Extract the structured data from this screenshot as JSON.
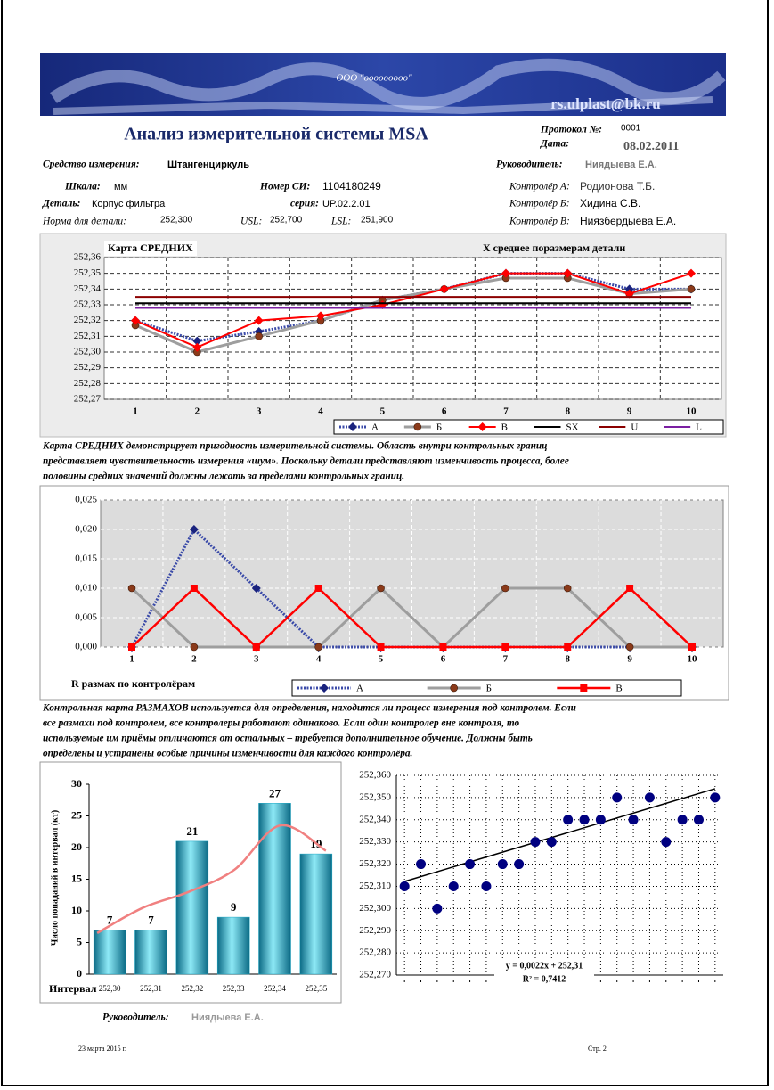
{
  "header": {
    "company": "ООО \"ооооооооо\"",
    "email": "rs.ulplast@bk.ru",
    "title": "Анализ измерительной системы MSA",
    "protocol_label": "Протокол №:",
    "protocol": "0001",
    "date_label": "Дата:",
    "date": "08.02.2011"
  },
  "info": {
    "instrument_label": "Средство измерения:",
    "instrument": "Штангенциркуль",
    "head_label": "Руководитель:",
    "head": "Ниядыева Е.А.",
    "scale_label": "Шкала:",
    "scale": "мм",
    "number_label": "Номер СИ:",
    "number": "1104180249",
    "ctrl_a_label": "Контролёр А:",
    "ctrl_a": "Родионова Т.Б.",
    "part_label": "Деталь:",
    "part": "Корпус фильтра",
    "series_label": "серия:",
    "series": "UP.02.2.01",
    "ctrl_b_label": "Контролёр Б:",
    "ctrl_b": "Хидина С.В.",
    "norm_label": "Норма для детали:",
    "norm": "252,300",
    "usl_label": "USL:",
    "usl": "252,700",
    "lsl_label": "LSL:",
    "lsl": "251,900",
    "ctrl_c_label": "Контролёр В:",
    "ctrl_c": "Ниязбердыева Е.А."
  },
  "captions": [
    [
      "Карта СРЕДНИХ демонстрирует пригодность измерительной системы. Область внутри контрольных границ",
      "представляет чувствительность измерения «шум». Поскольку детали представляют изменчивость процесса, более",
      "половины средних значений должны лежать за пределами контрольных границ."
    ],
    [
      "Контрольная карта РАЗМАХОВ используется для определения, находится ли процесс измерения под контролем. Если",
      "все размахи под контролем, все контролеры работают одинаково. Если один контролер вне контроля, то",
      "используемые им приёмы отличаются от остальных – требуется дополнительное обучение. Должны быть",
      "определены и устранены особые причины изменчивости для каждого контролёра."
    ]
  ],
  "chart_data": [
    {
      "type": "line",
      "title": "Карта СРЕДНИХ",
      "subtitle": "X среднее поразмерам детали",
      "categories": [
        1,
        2,
        3,
        4,
        5,
        6,
        7,
        8,
        9,
        10
      ],
      "ylim": [
        252.27,
        252.36
      ],
      "yticks": [
        {
          "value": 252.27,
          "label": "252,27"
        },
        {
          "value": 252.28,
          "label": "252,28"
        },
        {
          "value": 252.29,
          "label": "252,29"
        },
        {
          "value": 252.3,
          "label": "252,30"
        },
        {
          "value": 252.31,
          "label": "252,31"
        },
        {
          "value": 252.32,
          "label": "252,32"
        },
        {
          "value": 252.33,
          "label": "252,33"
        },
        {
          "value": 252.34,
          "label": "252,34"
        },
        {
          "value": 252.35,
          "label": "252,35"
        },
        {
          "value": 252.36,
          "label": "252,36"
        }
      ],
      "grid": true,
      "series": [
        {
          "name": "А",
          "color": "#3a4aa8",
          "width": 3,
          "dash": "2 1.5",
          "marker": "diamond",
          "marker_color": "#1a237e",
          "values": [
            252.32,
            252.307,
            252.313,
            252.32,
            252.333,
            252.34,
            252.35,
            252.35,
            252.34,
            252.34
          ]
        },
        {
          "name": "Б",
          "color": "#9e9e9e",
          "width": 3,
          "marker": "circle",
          "marker_color": "#8b3a1a",
          "values": [
            252.317,
            252.3,
            252.31,
            252.32,
            252.333,
            252.34,
            252.347,
            252.347,
            252.337,
            252.34
          ]
        },
        {
          "name": "В",
          "color": "#ff0000",
          "width": 2,
          "marker": "diamond",
          "marker_color": "#ff0000",
          "values": [
            252.32,
            252.303,
            252.32,
            252.323,
            252.33,
            252.34,
            252.35,
            252.35,
            252.337,
            252.35
          ]
        },
        {
          "name": "SX",
          "color": "#000000",
          "width": 2,
          "marker": "none",
          "values": [
            252.331,
            252.331,
            252.331,
            252.331,
            252.331,
            252.331,
            252.331,
            252.331,
            252.331,
            252.331
          ]
        },
        {
          "name": "U",
          "color": "#8b0000",
          "width": 2,
          "marker": "none",
          "values": [
            252.335,
            252.335,
            252.335,
            252.335,
            252.335,
            252.335,
            252.335,
            252.335,
            252.335,
            252.335
          ]
        },
        {
          "name": "L",
          "color": "#7b1fa2",
          "width": 2,
          "marker": "none",
          "values": [
            252.328,
            252.328,
            252.328,
            252.328,
            252.328,
            252.328,
            252.328,
            252.328,
            252.328,
            252.328
          ]
        }
      ]
    },
    {
      "type": "line",
      "title": "R размах  по контролёрам",
      "categories": [
        1,
        2,
        3,
        4,
        5,
        6,
        7,
        8,
        9,
        10
      ],
      "ylim": [
        0,
        0.025
      ],
      "yticks": [
        {
          "value": 0,
          "label": "0,000"
        },
        {
          "value": 0.005,
          "label": "0,005"
        },
        {
          "value": 0.01,
          "label": "0,010"
        },
        {
          "value": 0.015,
          "label": "0,015"
        },
        {
          "value": 0.02,
          "label": "0,020"
        },
        {
          "value": 0.025,
          "label": "0,025"
        }
      ],
      "grid": true,
      "series": [
        {
          "name": "А",
          "color": "#3a4aa8",
          "width": 3,
          "dash": "2 1.5",
          "marker": "diamond",
          "marker_color": "#1a237e",
          "values": [
            0,
            0.02,
            0.01,
            0,
            0,
            0,
            0,
            0,
            0,
            0
          ]
        },
        {
          "name": "Б",
          "color": "#9e9e9e",
          "width": 3,
          "marker": "circle",
          "marker_color": "#8b3a1a",
          "values": [
            0.01,
            0,
            0,
            0,
            0.01,
            0,
            0.01,
            0.01,
            0,
            0
          ]
        },
        {
          "name": "В",
          "color": "#ff0000",
          "width": 2.5,
          "marker": "square",
          "marker_color": "#ff0000",
          "values": [
            0,
            0.01,
            0,
            0.01,
            0,
            0,
            0,
            0,
            0.01,
            0
          ]
        }
      ]
    },
    {
      "type": "bar",
      "xlabel": "Интервал",
      "ylabel": "Число попаданий в интервал (кт)",
      "categories": [
        "252,30",
        "252,31",
        "252,32",
        "252,33",
        "252,34",
        "252,35"
      ],
      "values": [
        7,
        7,
        21,
        9,
        27,
        19
      ],
      "color": "#1aa6c4",
      "trend": [
        6.5,
        10.5,
        13,
        16.5,
        23.5,
        19.5
      ],
      "trend_color": "#f08080",
      "ylim": [
        0,
        30
      ],
      "yticks": [
        0,
        5,
        10,
        15,
        20,
        25,
        30
      ]
    },
    {
      "type": "scatter",
      "x": [
        1,
        2,
        3,
        4,
        5,
        6,
        7,
        8,
        9,
        10,
        11,
        12,
        13,
        14,
        15,
        16,
        17,
        18,
        19,
        20
      ],
      "values": [
        252.31,
        252.32,
        252.3,
        252.31,
        252.32,
        252.31,
        252.32,
        252.32,
        252.33,
        252.33,
        252.34,
        252.34,
        252.34,
        252.35,
        252.34,
        252.35,
        252.33,
        252.34,
        252.34,
        252.35
      ],
      "color": "#000080",
      "xlim": [
        0.5,
        20.5
      ],
      "xticks": [
        1,
        2,
        3,
        4,
        5,
        6,
        7,
        8,
        9,
        10,
        11,
        12,
        13,
        14,
        15,
        16,
        17,
        18,
        19,
        20
      ],
      "ylim": [
        252.27,
        252.36
      ],
      "yticks": [
        {
          "value": 252.27,
          "label": "252,270"
        },
        {
          "value": 252.28,
          "label": "252,280"
        },
        {
          "value": 252.29,
          "label": "252,290"
        },
        {
          "value": 252.3,
          "label": "252,300"
        },
        {
          "value": 252.31,
          "label": "252,310"
        },
        {
          "value": 252.32,
          "label": "252,320"
        },
        {
          "value": 252.33,
          "label": "252,330"
        },
        {
          "value": 252.34,
          "label": "252,340"
        },
        {
          "value": 252.35,
          "label": "252,350"
        },
        {
          "value": 252.36,
          "label": "252,360"
        }
      ],
      "grid": true,
      "trendline": {
        "slope": 0.0022,
        "intercept": 252.31
      },
      "equation": "y = 0,0022x + 252,31",
      "r2": "R² = 0,7412"
    }
  ],
  "footer": {
    "head_label": "Руководитель:",
    "head": "Ниядыева Е.А.",
    "date": "23 марта 2015 г.",
    "page": "Стр. 2"
  }
}
